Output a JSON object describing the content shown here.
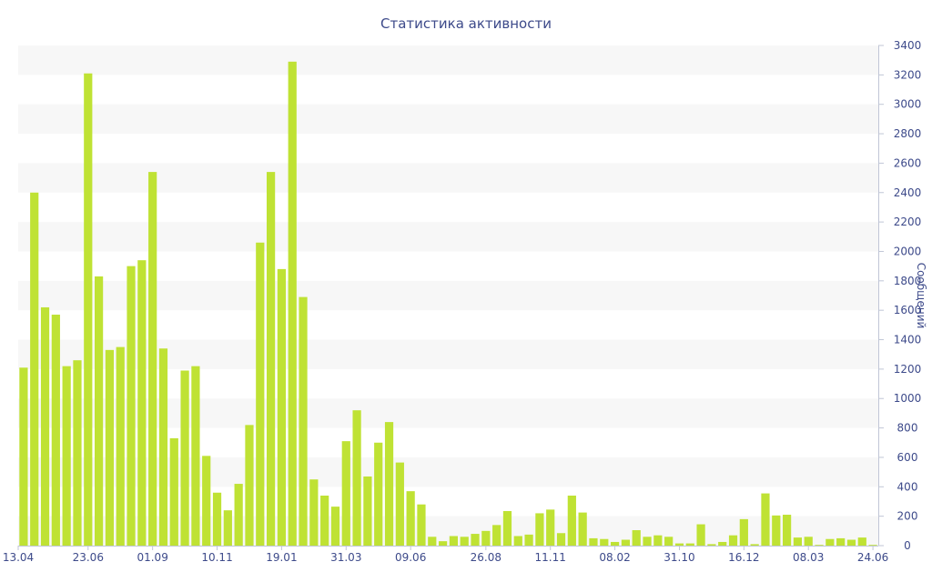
{
  "chart_data": {
    "type": "bar",
    "title": "Статистика активности",
    "ylabel": "Сообщений",
    "ylim": [
      0,
      3400
    ],
    "y_ticks": [
      0,
      200,
      400,
      600,
      800,
      1000,
      1200,
      1400,
      1600,
      1800,
      2000,
      2200,
      2400,
      2600,
      2800,
      3000,
      3200,
      3400
    ],
    "y_axis_position": "right",
    "grid": "alternating horizontal bands",
    "x_tick_labels": [
      {
        "label": "13.04",
        "index": 0
      },
      {
        "label": "23.06",
        "index": 6
      },
      {
        "label": "01.09",
        "index": 12
      },
      {
        "label": "10.11",
        "index": 18
      },
      {
        "label": "19.01",
        "index": 24
      },
      {
        "label": "31.03",
        "index": 30
      },
      {
        "label": "09.06",
        "index": 36
      },
      {
        "label": "26.08",
        "index": 43
      },
      {
        "label": "11.11",
        "index": 49
      },
      {
        "label": "08.02",
        "index": 55
      },
      {
        "label": "31.10",
        "index": 61
      },
      {
        "label": "16.12",
        "index": 67
      },
      {
        "label": "08.03",
        "index": 73
      },
      {
        "label": "24.06",
        "index": 79
      }
    ],
    "values": [
      1210,
      2400,
      1620,
      1570,
      1220,
      1260,
      3210,
      1830,
      1330,
      1350,
      1900,
      1940,
      2540,
      1340,
      730,
      1190,
      1220,
      610,
      360,
      240,
      420,
      820,
      2060,
      2540,
      1880,
      3290,
      1690,
      450,
      340,
      265,
      710,
      920,
      470,
      700,
      840,
      565,
      370,
      280,
      60,
      30,
      65,
      60,
      80,
      100,
      140,
      235,
      65,
      75,
      220,
      245,
      85,
      340,
      225,
      50,
      45,
      25,
      40,
      105,
      60,
      70,
      60,
      15,
      15,
      145,
      10,
      25,
      70,
      180,
      10,
      355,
      205,
      210,
      55,
      60,
      5,
      45,
      50,
      40,
      55,
      5
    ],
    "bar_color": "#bfe234",
    "text_color": "#3d4a8a"
  }
}
